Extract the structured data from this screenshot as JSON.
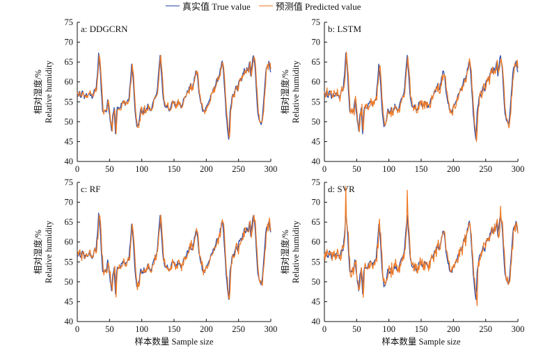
{
  "legend": {
    "true_label": "真实值 True value",
    "pred_label": "预测值 Predicted value"
  },
  "colors": {
    "true": "#2a4aa8",
    "predicted": "#f07c28"
  },
  "axes_text": {
    "ylabel_cn": "相对湿度/%",
    "ylabel_en": "Relative humidity",
    "xlabel": "样本数量 Sample size"
  },
  "chart_data": [
    {
      "type": "line",
      "title": "a: DDGCRN",
      "xlim": [
        0,
        300
      ],
      "ylim": [
        40,
        75
      ],
      "xticks": [
        0,
        50,
        100,
        150,
        200,
        250,
        300
      ],
      "yticks": [
        40,
        45,
        50,
        55,
        60,
        65,
        70,
        75
      ],
      "series": [
        {
          "name": "真实值 True value",
          "values": []
        },
        {
          "name": "预测值 Predicted value",
          "noise": 0.6,
          "lag": 1,
          "spikes": [],
          "values": []
        }
      ]
    },
    {
      "type": "line",
      "title": "b: LSTM",
      "xlim": [
        0,
        300
      ],
      "ylim": [
        40,
        75
      ],
      "xticks": [
        0,
        50,
        100,
        150,
        200,
        250,
        300
      ],
      "yticks": [
        40,
        45,
        50,
        55,
        60,
        65,
        70,
        75
      ],
      "series": [
        {
          "name": "真实值 True value",
          "values": []
        },
        {
          "name": "预测值 Predicted value",
          "noise": 1.0,
          "lag": 1,
          "spikes": [],
          "values": []
        }
      ]
    },
    {
      "type": "line",
      "title": "c: RF",
      "xlim": [
        0,
        300
      ],
      "ylim": [
        40,
        75
      ],
      "xticks": [
        0,
        50,
        100,
        150,
        200,
        250,
        300
      ],
      "yticks": [
        40,
        45,
        50,
        55,
        60,
        65,
        70,
        75
      ],
      "series": [
        {
          "name": "真实值 True value",
          "values": []
        },
        {
          "name": "预测值 Predicted value",
          "noise": 0.9,
          "lag": 1,
          "spikes": [],
          "values": []
        }
      ]
    },
    {
      "type": "line",
      "title": "d: SVR",
      "xlim": [
        0,
        300
      ],
      "ylim": [
        40,
        75
      ],
      "xticks": [
        0,
        50,
        100,
        150,
        200,
        250,
        300
      ],
      "yticks": [
        40,
        45,
        50,
        55,
        60,
        65,
        70,
        75
      ],
      "series": [
        {
          "name": "真实值 True value",
          "values": []
        },
        {
          "name": "预测值 Predicted value",
          "noise": 1.3,
          "lag": 1,
          "spikes": [
            [
              33,
              74
            ],
            [
              128,
              73
            ],
            [
              236,
              44
            ],
            [
              272,
              69
            ]
          ],
          "values": []
        }
      ]
    }
  ],
  "true_keypoints": [
    [
      0,
      56.5
    ],
    [
      3,
      57
    ],
    [
      5,
      56
    ],
    [
      8,
      57.5
    ],
    [
      11,
      56
    ],
    [
      14,
      57
    ],
    [
      17,
      56.5
    ],
    [
      20,
      57
    ],
    [
      23,
      56
    ],
    [
      26,
      57.5
    ],
    [
      29,
      58
    ],
    [
      31,
      62
    ],
    [
      33,
      67.5
    ],
    [
      35,
      64
    ],
    [
      37,
      58
    ],
    [
      39,
      53
    ],
    [
      41,
      52
    ],
    [
      43,
      53
    ],
    [
      45,
      52
    ],
    [
      47,
      56
    ],
    [
      49,
      53
    ],
    [
      51,
      50
    ],
    [
      53,
      48
    ],
    [
      55,
      52
    ],
    [
      57,
      53
    ],
    [
      59,
      47.5
    ],
    [
      61,
      53
    ],
    [
      63,
      54
    ],
    [
      66,
      53.5
    ],
    [
      70,
      55
    ],
    [
      73,
      54.5
    ],
    [
      77,
      55
    ],
    [
      80,
      56
    ],
    [
      82,
      60
    ],
    [
      84,
      64
    ],
    [
      86,
      62
    ],
    [
      88,
      56
    ],
    [
      90,
      51
    ],
    [
      92,
      49
    ],
    [
      94,
      48.5
    ],
    [
      96,
      51
    ],
    [
      98,
      53
    ],
    [
      100,
      52
    ],
    [
      103,
      53
    ],
    [
      106,
      52.5
    ],
    [
      109,
      54
    ],
    [
      112,
      53
    ],
    [
      115,
      53.5
    ],
    [
      118,
      55
    ],
    [
      121,
      56
    ],
    [
      124,
      59
    ],
    [
      126,
      63
    ],
    [
      128,
      66.5
    ],
    [
      130,
      62
    ],
    [
      132,
      57
    ],
    [
      134,
      55
    ],
    [
      136,
      53.5
    ],
    [
      139,
      54
    ],
    [
      142,
      53
    ],
    [
      145,
      54
    ],
    [
      148,
      55
    ],
    [
      151,
      54
    ],
    [
      154,
      54.5
    ],
    [
      157,
      55
    ],
    [
      160,
      54
    ],
    [
      163,
      55
    ],
    [
      166,
      56
    ],
    [
      169,
      57
    ],
    [
      172,
      58
    ],
    [
      175,
      59
    ],
    [
      178,
      58
    ],
    [
      181,
      61
    ],
    [
      184,
      63
    ],
    [
      186,
      61
    ],
    [
      188,
      57
    ],
    [
      191,
      55
    ],
    [
      194,
      53
    ],
    [
      197,
      52.5
    ],
    [
      200,
      54
    ],
    [
      203,
      55
    ],
    [
      206,
      56
    ],
    [
      209,
      57.5
    ],
    [
      212,
      58.5
    ],
    [
      215,
      60
    ],
    [
      218,
      61
    ],
    [
      221,
      63
    ],
    [
      224,
      65
    ],
    [
      226,
      62
    ],
    [
      228,
      57
    ],
    [
      230,
      52
    ],
    [
      232,
      48
    ],
    [
      234,
      45.5
    ],
    [
      236,
      52
    ],
    [
      238,
      55
    ],
    [
      240,
      57
    ],
    [
      242,
      56
    ],
    [
      244,
      58
    ],
    [
      246,
      59
    ],
    [
      248,
      58
    ],
    [
      250,
      60
    ],
    [
      252,
      61
    ],
    [
      254,
      60
    ],
    [
      256,
      62
    ],
    [
      258,
      63
    ],
    [
      260,
      62
    ],
    [
      262,
      64
    ],
    [
      264,
      63
    ],
    [
      266,
      65
    ],
    [
      268,
      62
    ],
    [
      270,
      64
    ],
    [
      272,
      67
    ],
    [
      274,
      65
    ],
    [
      276,
      60
    ],
    [
      278,
      54
    ],
    [
      280,
      51
    ],
    [
      282,
      50
    ],
    [
      284,
      49.5
    ],
    [
      286,
      51
    ],
    [
      288,
      55
    ],
    [
      290,
      60
    ],
    [
      292,
      63
    ],
    [
      294,
      64
    ],
    [
      296,
      65
    ],
    [
      298,
      63
    ],
    [
      300,
      62
    ]
  ]
}
